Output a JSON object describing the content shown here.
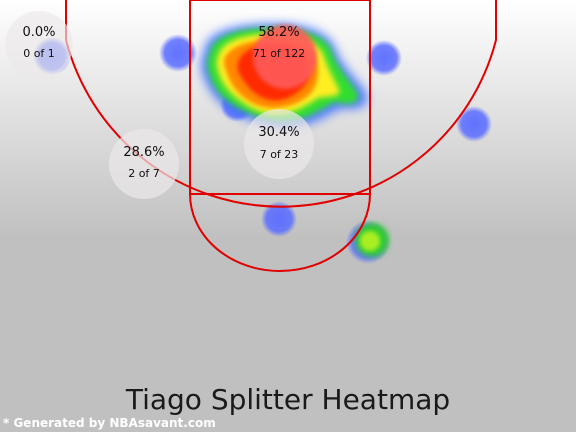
{
  "title": "Tiago Splitter Heatmap",
  "footer": "* Generated by NBAsavant.com",
  "colors": {
    "bg_top": "#ffffff",
    "bg_bottom": "#c0c0c0",
    "court_lines": "#e00000",
    "shot_dot": "#5566ff"
  },
  "chart_data": {
    "type": "heatmap",
    "title": "Tiago Splitter Heatmap",
    "zones": [
      {
        "id": "left-corner",
        "pct": "0.0%",
        "made_of": "0 of 1"
      },
      {
        "id": "restricted-area",
        "pct": "58.2%",
        "made_of": "71 of 122"
      },
      {
        "id": "paint",
        "pct": "30.4%",
        "made_of": "7 of 23"
      },
      {
        "id": "left-midrange",
        "pct": "28.6%",
        "made_of": "2 of 7"
      }
    ],
    "heat_colormap": [
      "blue",
      "green",
      "yellow",
      "orange",
      "red"
    ]
  }
}
